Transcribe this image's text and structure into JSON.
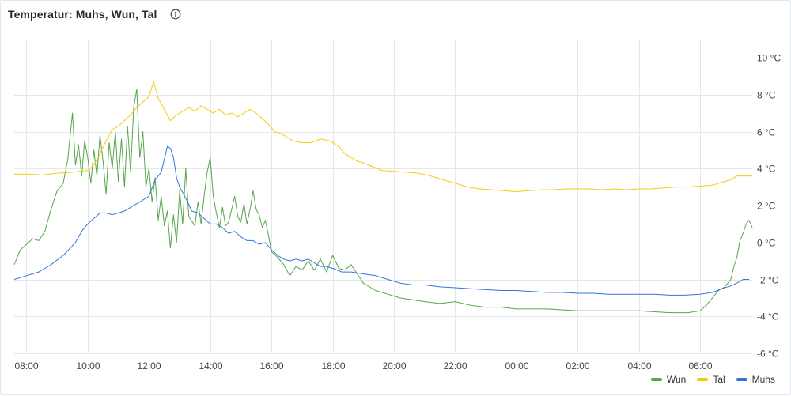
{
  "panel": {
    "title": "Temperatur: Muhs, Wun, Tal",
    "info_icon": "info-circle-icon"
  },
  "chart_data": {
    "type": "line",
    "title": "Temperatur: Muhs, Wun, Tal",
    "x_unit": "hour",
    "x_range": [
      7.6,
      31.7
    ],
    "y_range": [
      -6,
      10
    ],
    "y_unit": "°C",
    "x_ticks": [
      "08:00",
      "10:00",
      "12:00",
      "14:00",
      "16:00",
      "18:00",
      "20:00",
      "22:00",
      "00:00",
      "02:00",
      "04:00",
      "06:00"
    ],
    "x_tick_values": [
      8,
      10,
      12,
      14,
      16,
      18,
      20,
      22,
      24,
      26,
      28,
      30
    ],
    "y_ticks": [
      "10 °C",
      "8 °C",
      "6 °C",
      "4 °C",
      "2 °C",
      "0 °C",
      "-2 °C",
      "-4 °C",
      "-6 °C"
    ],
    "y_tick_values": [
      10,
      8,
      6,
      4,
      2,
      0,
      -2,
      -4,
      -6
    ],
    "grid": true,
    "legend_position": "bottom-right",
    "series": [
      {
        "name": "Wun",
        "color": "#56a64b",
        "points": [
          [
            7.6,
            -1.2
          ],
          [
            7.8,
            -0.4
          ],
          [
            8.0,
            -0.1
          ],
          [
            8.2,
            0.2
          ],
          [
            8.4,
            0.1
          ],
          [
            8.6,
            0.6
          ],
          [
            8.8,
            1.8
          ],
          [
            9.0,
            2.8
          ],
          [
            9.2,
            3.2
          ],
          [
            9.35,
            4.5
          ],
          [
            9.5,
            7.0
          ],
          [
            9.6,
            4.2
          ],
          [
            9.7,
            5.3
          ],
          [
            9.8,
            3.6
          ],
          [
            9.9,
            5.5
          ],
          [
            10.0,
            4.6
          ],
          [
            10.1,
            3.2
          ],
          [
            10.2,
            5.0
          ],
          [
            10.3,
            3.6
          ],
          [
            10.4,
            5.8
          ],
          [
            10.5,
            4.4
          ],
          [
            10.6,
            2.6
          ],
          [
            10.7,
            5.4
          ],
          [
            10.8,
            4.0
          ],
          [
            10.9,
            6.0
          ],
          [
            11.0,
            3.3
          ],
          [
            11.1,
            5.6
          ],
          [
            11.2,
            3.0
          ],
          [
            11.3,
            6.3
          ],
          [
            11.4,
            3.8
          ],
          [
            11.5,
            7.3
          ],
          [
            11.6,
            8.3
          ],
          [
            11.7,
            4.6
          ],
          [
            11.8,
            6.0
          ],
          [
            11.9,
            3.0
          ],
          [
            12.0,
            4.0
          ],
          [
            12.1,
            2.2
          ],
          [
            12.2,
            3.5
          ],
          [
            12.3,
            1.2
          ],
          [
            12.4,
            2.5
          ],
          [
            12.5,
            0.9
          ],
          [
            12.6,
            1.7
          ],
          [
            12.7,
            -0.3
          ],
          [
            12.8,
            1.5
          ],
          [
            12.9,
            0.0
          ],
          [
            13.0,
            2.8
          ],
          [
            13.1,
            1.0
          ],
          [
            13.2,
            4.0
          ],
          [
            13.3,
            1.4
          ],
          [
            13.5,
            0.9
          ],
          [
            13.6,
            2.2
          ],
          [
            13.7,
            1.0
          ],
          [
            13.8,
            2.5
          ],
          [
            13.9,
            3.8
          ],
          [
            14.0,
            4.6
          ],
          [
            14.1,
            2.5
          ],
          [
            14.2,
            1.6
          ],
          [
            14.3,
            0.8
          ],
          [
            14.4,
            1.9
          ],
          [
            14.5,
            0.9
          ],
          [
            14.6,
            1.1
          ],
          [
            14.8,
            2.5
          ],
          [
            14.9,
            1.4
          ],
          [
            15.0,
            1.1
          ],
          [
            15.1,
            2.1
          ],
          [
            15.2,
            1.0
          ],
          [
            15.3,
            1.8
          ],
          [
            15.4,
            2.8
          ],
          [
            15.5,
            1.8
          ],
          [
            15.6,
            1.5
          ],
          [
            15.7,
            0.8
          ],
          [
            15.8,
            1.2
          ],
          [
            15.9,
            0.4
          ],
          [
            16.0,
            -0.5
          ],
          [
            16.2,
            -0.8
          ],
          [
            16.4,
            -1.2
          ],
          [
            16.6,
            -1.8
          ],
          [
            16.8,
            -1.3
          ],
          [
            17.0,
            -1.5
          ],
          [
            17.2,
            -1.0
          ],
          [
            17.4,
            -1.5
          ],
          [
            17.6,
            -0.9
          ],
          [
            17.8,
            -1.6
          ],
          [
            18.0,
            -0.7
          ],
          [
            18.2,
            -1.4
          ],
          [
            18.4,
            -1.5
          ],
          [
            18.6,
            -1.2
          ],
          [
            18.8,
            -1.7
          ],
          [
            19.0,
            -2.2
          ],
          [
            19.4,
            -2.6
          ],
          [
            19.8,
            -2.8
          ],
          [
            20.2,
            -3.0
          ],
          [
            20.6,
            -3.1
          ],
          [
            21.0,
            -3.2
          ],
          [
            21.5,
            -3.3
          ],
          [
            22.0,
            -3.2
          ],
          [
            22.5,
            -3.4
          ],
          [
            23.0,
            -3.5
          ],
          [
            23.5,
            -3.5
          ],
          [
            24.0,
            -3.6
          ],
          [
            25.0,
            -3.6
          ],
          [
            26.0,
            -3.7
          ],
          [
            27.0,
            -3.7
          ],
          [
            28.0,
            -3.7
          ],
          [
            29.0,
            -3.8
          ],
          [
            29.6,
            -3.8
          ],
          [
            30.0,
            -3.7
          ],
          [
            30.2,
            -3.4
          ],
          [
            30.4,
            -3.0
          ],
          [
            30.6,
            -2.6
          ],
          [
            30.8,
            -2.4
          ],
          [
            31.0,
            -2.0
          ],
          [
            31.1,
            -1.3
          ],
          [
            31.2,
            -0.8
          ],
          [
            31.3,
            0.1
          ],
          [
            31.4,
            0.5
          ],
          [
            31.5,
            1.0
          ],
          [
            31.6,
            1.2
          ],
          [
            31.7,
            0.8
          ]
        ]
      },
      {
        "name": "Tal",
        "color": "#f2cc0c",
        "points": [
          [
            7.6,
            3.7
          ],
          [
            8.0,
            3.7
          ],
          [
            8.5,
            3.65
          ],
          [
            9.0,
            3.75
          ],
          [
            9.5,
            3.8
          ],
          [
            10.0,
            3.9
          ],
          [
            10.2,
            4.2
          ],
          [
            10.4,
            4.8
          ],
          [
            10.6,
            5.5
          ],
          [
            10.8,
            6.1
          ],
          [
            11.0,
            6.3
          ],
          [
            11.2,
            6.6
          ],
          [
            11.4,
            6.9
          ],
          [
            11.6,
            7.3
          ],
          [
            11.8,
            7.6
          ],
          [
            12.0,
            7.9
          ],
          [
            12.15,
            8.7
          ],
          [
            12.3,
            7.8
          ],
          [
            12.5,
            7.2
          ],
          [
            12.7,
            6.6
          ],
          [
            12.9,
            6.9
          ],
          [
            13.1,
            7.1
          ],
          [
            13.3,
            7.3
          ],
          [
            13.5,
            7.1
          ],
          [
            13.7,
            7.4
          ],
          [
            13.9,
            7.2
          ],
          [
            14.1,
            7.0
          ],
          [
            14.3,
            7.2
          ],
          [
            14.5,
            6.9
          ],
          [
            14.7,
            7.0
          ],
          [
            14.9,
            6.8
          ],
          [
            15.1,
            7.0
          ],
          [
            15.3,
            7.2
          ],
          [
            15.5,
            7.0
          ],
          [
            15.7,
            6.7
          ],
          [
            15.9,
            6.4
          ],
          [
            16.1,
            6.0
          ],
          [
            16.3,
            5.9
          ],
          [
            16.5,
            5.7
          ],
          [
            16.7,
            5.5
          ],
          [
            17.0,
            5.4
          ],
          [
            17.3,
            5.4
          ],
          [
            17.6,
            5.6
          ],
          [
            17.9,
            5.5
          ],
          [
            18.2,
            5.2
          ],
          [
            18.4,
            4.8
          ],
          [
            18.6,
            4.6
          ],
          [
            18.8,
            4.4
          ],
          [
            19.0,
            4.3
          ],
          [
            19.3,
            4.1
          ],
          [
            19.6,
            3.9
          ],
          [
            20.0,
            3.85
          ],
          [
            20.4,
            3.8
          ],
          [
            20.8,
            3.75
          ],
          [
            21.2,
            3.6
          ],
          [
            21.6,
            3.4
          ],
          [
            22.0,
            3.2
          ],
          [
            22.4,
            3.0
          ],
          [
            22.8,
            2.9
          ],
          [
            23.2,
            2.85
          ],
          [
            23.6,
            2.8
          ],
          [
            24.0,
            2.75
          ],
          [
            24.4,
            2.8
          ],
          [
            24.8,
            2.85
          ],
          [
            25.2,
            2.85
          ],
          [
            25.6,
            2.9
          ],
          [
            26.0,
            2.9
          ],
          [
            26.4,
            2.9
          ],
          [
            26.8,
            2.85
          ],
          [
            27.2,
            2.9
          ],
          [
            27.6,
            2.85
          ],
          [
            28.0,
            2.9
          ],
          [
            28.4,
            2.9
          ],
          [
            28.8,
            2.95
          ],
          [
            29.2,
            3.0
          ],
          [
            29.6,
            3.0
          ],
          [
            30.0,
            3.05
          ],
          [
            30.4,
            3.1
          ],
          [
            30.8,
            3.3
          ],
          [
            31.0,
            3.4
          ],
          [
            31.2,
            3.6
          ],
          [
            31.4,
            3.6
          ],
          [
            31.7,
            3.6
          ]
        ]
      },
      {
        "name": "Muhs",
        "color": "#3274d9",
        "points": [
          [
            7.6,
            -2.0
          ],
          [
            8.0,
            -1.8
          ],
          [
            8.4,
            -1.6
          ],
          [
            8.8,
            -1.2
          ],
          [
            9.2,
            -0.7
          ],
          [
            9.6,
            0.0
          ],
          [
            9.8,
            0.6
          ],
          [
            10.0,
            1.0
          ],
          [
            10.2,
            1.3
          ],
          [
            10.4,
            1.6
          ],
          [
            10.6,
            1.6
          ],
          [
            10.8,
            1.5
          ],
          [
            11.0,
            1.6
          ],
          [
            11.2,
            1.7
          ],
          [
            11.4,
            1.9
          ],
          [
            11.6,
            2.1
          ],
          [
            11.8,
            2.3
          ],
          [
            12.0,
            2.5
          ],
          [
            12.2,
            3.4
          ],
          [
            12.4,
            3.8
          ],
          [
            12.5,
            4.5
          ],
          [
            12.6,
            5.2
          ],
          [
            12.7,
            5.1
          ],
          [
            12.8,
            4.6
          ],
          [
            12.9,
            3.5
          ],
          [
            13.0,
            3.0
          ],
          [
            13.2,
            2.4
          ],
          [
            13.4,
            1.7
          ],
          [
            13.6,
            1.6
          ],
          [
            13.8,
            1.3
          ],
          [
            14.0,
            1.0
          ],
          [
            14.2,
            1.0
          ],
          [
            14.4,
            0.8
          ],
          [
            14.6,
            0.5
          ],
          [
            14.8,
            0.6
          ],
          [
            15.0,
            0.3
          ],
          [
            15.2,
            0.1
          ],
          [
            15.4,
            0.1
          ],
          [
            15.6,
            -0.1
          ],
          [
            15.8,
            0.0
          ],
          [
            16.0,
            -0.4
          ],
          [
            16.2,
            -0.7
          ],
          [
            16.4,
            -0.9
          ],
          [
            16.6,
            -1.0
          ],
          [
            16.8,
            -0.9
          ],
          [
            17.0,
            -1.0
          ],
          [
            17.2,
            -0.9
          ],
          [
            17.4,
            -1.1
          ],
          [
            17.6,
            -1.3
          ],
          [
            17.8,
            -1.3
          ],
          [
            18.0,
            -1.4
          ],
          [
            18.3,
            -1.6
          ],
          [
            18.6,
            -1.6
          ],
          [
            19.0,
            -1.7
          ],
          [
            19.4,
            -1.8
          ],
          [
            19.8,
            -2.0
          ],
          [
            20.2,
            -2.2
          ],
          [
            20.6,
            -2.3
          ],
          [
            21.0,
            -2.3
          ],
          [
            21.5,
            -2.4
          ],
          [
            22.0,
            -2.45
          ],
          [
            22.5,
            -2.5
          ],
          [
            23.0,
            -2.55
          ],
          [
            23.5,
            -2.6
          ],
          [
            24.0,
            -2.6
          ],
          [
            24.5,
            -2.65
          ],
          [
            25.0,
            -2.7
          ],
          [
            25.5,
            -2.7
          ],
          [
            26.0,
            -2.75
          ],
          [
            26.5,
            -2.75
          ],
          [
            27.0,
            -2.8
          ],
          [
            27.5,
            -2.8
          ],
          [
            28.0,
            -2.8
          ],
          [
            28.5,
            -2.8
          ],
          [
            29.0,
            -2.85
          ],
          [
            29.5,
            -2.85
          ],
          [
            30.0,
            -2.8
          ],
          [
            30.4,
            -2.7
          ],
          [
            30.7,
            -2.5
          ],
          [
            31.0,
            -2.35
          ],
          [
            31.2,
            -2.2
          ],
          [
            31.4,
            -2.0
          ],
          [
            31.6,
            -2.0
          ]
        ]
      }
    ]
  }
}
